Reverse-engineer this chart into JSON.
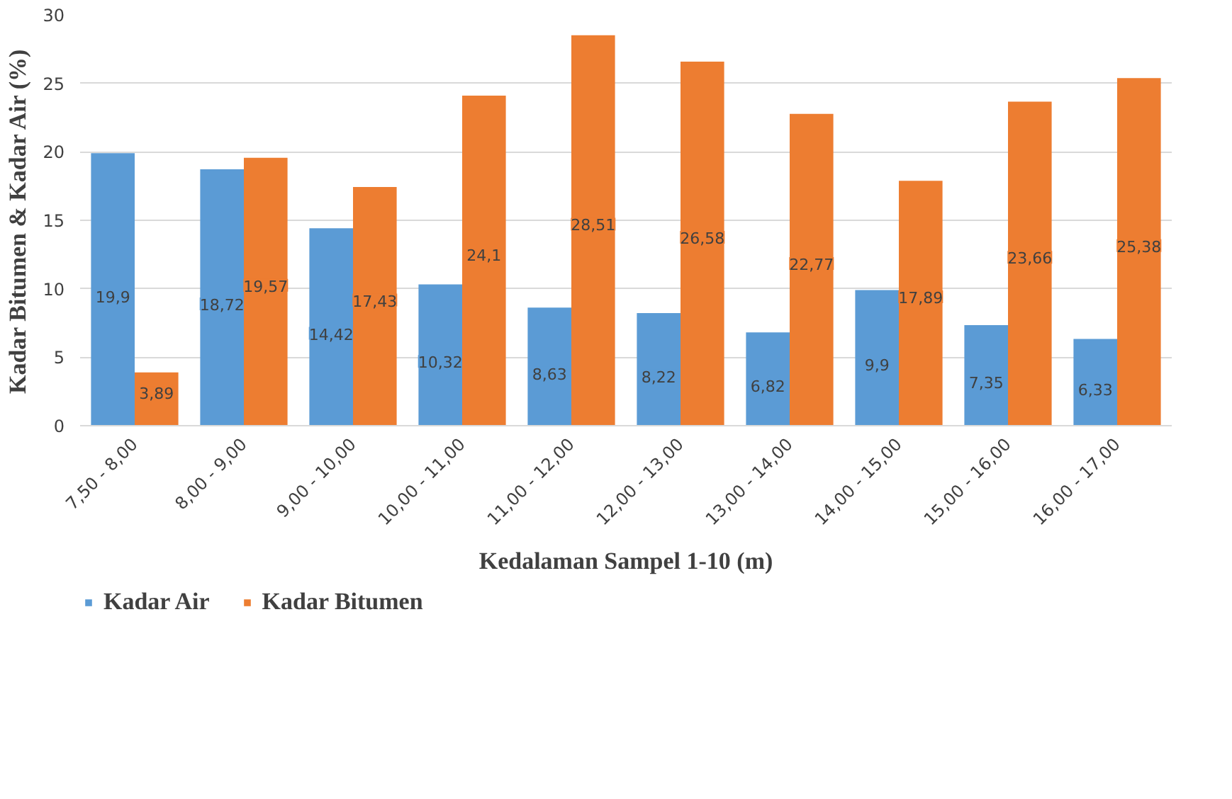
{
  "chart_data": {
    "type": "bar",
    "categories": [
      "7,50 - 8,00",
      "8,00 - 9,00",
      "9,00 - 10,00",
      "10,00 - 11,00",
      "11,00 - 12,00",
      "12,00 - 13,00",
      "13,00 - 14,00",
      "14,00 - 15,00",
      "15,00 - 16,00",
      "16,00 - 17,00"
    ],
    "series": [
      {
        "name": "Kadar Air",
        "color": "#5b9bd5",
        "values": [
          19.9,
          18.72,
          14.42,
          10.32,
          8.63,
          8.22,
          6.82,
          9.9,
          7.35,
          6.33
        ],
        "value_labels": [
          "19,9",
          "18,72",
          "14,42",
          "10,32",
          "8,63",
          "8,22",
          "6,82",
          "9,9",
          "7,35",
          "6,33"
        ]
      },
      {
        "name": "Kadar Bitumen",
        "color": "#ed7d31",
        "values": [
          3.89,
          19.57,
          17.43,
          24.1,
          28.51,
          26.58,
          22.77,
          17.89,
          23.66,
          25.38
        ],
        "value_labels": [
          "3,89",
          "19,57",
          "17,43",
          "24,1",
          "28,51",
          "26,58",
          "22,77",
          "17,89",
          "23,66",
          "25,38"
        ]
      }
    ],
    "xlabel": "Kedalaman Sampel 1-10 (m)",
    "ylabel": "Kadar Bitumen & Kadar Air (%)",
    "ylim": [
      0,
      30
    ],
    "yticks": [
      0,
      5,
      10,
      15,
      20,
      25,
      30
    ],
    "grid": "y",
    "legend": "bottom left"
  }
}
